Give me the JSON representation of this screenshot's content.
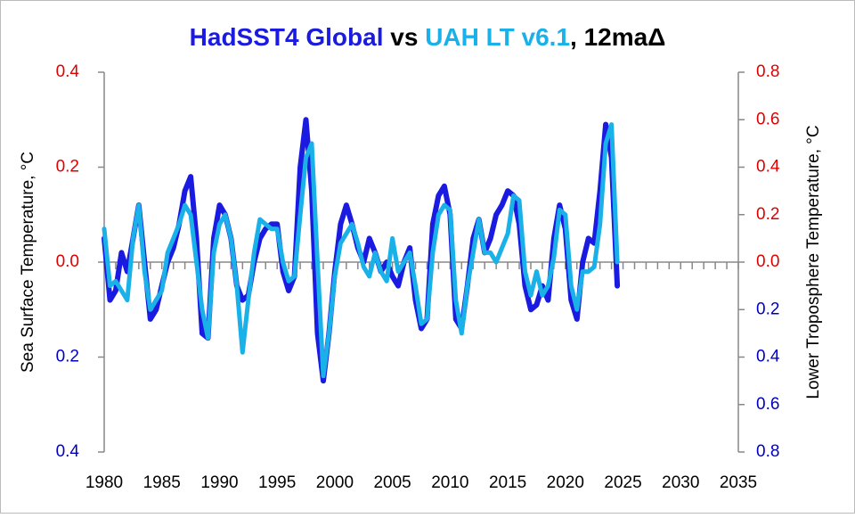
{
  "chart_data": {
    "type": "line",
    "title_separator": " vs ",
    "title_suffix": ", 12maΔ",
    "ylabel": "Sea Surface Temperature, °C",
    "y2label": "Lower Troposphere Temperature, °C",
    "x": [
      1980,
      1980.5,
      1981,
      1981.5,
      1982,
      1982.5,
      1983,
      1983.5,
      1984,
      1984.5,
      1985,
      1985.5,
      1986,
      1986.5,
      1987,
      1987.5,
      1988,
      1988.5,
      1989,
      1989.5,
      1990,
      1990.5,
      1991,
      1991.5,
      1992,
      1992.5,
      1993,
      1993.5,
      1994,
      1994.5,
      1995,
      1995.5,
      1996,
      1996.5,
      1997,
      1997.5,
      1998,
      1998.5,
      1999,
      1999.5,
      2000,
      2000.5,
      2001,
      2001.5,
      2002,
      2002.5,
      2003,
      2003.5,
      2004,
      2004.5,
      2005,
      2005.5,
      2006,
      2006.5,
      2007,
      2007.5,
      2008,
      2008.5,
      2009,
      2009.5,
      2010,
      2010.5,
      2011,
      2011.5,
      2012,
      2012.5,
      2013,
      2013.5,
      2014,
      2014.5,
      2015,
      2015.5,
      2016,
      2016.5,
      2017,
      2017.5,
      2018,
      2018.5,
      2019,
      2019.5,
      2020,
      2020.5,
      2021,
      2021.5,
      2022,
      2022.5,
      2023,
      2023.5,
      2024,
      2024.5
    ],
    "series": [
      {
        "name": "HadSST4 Global",
        "color": "#1a1ae0",
        "width": 6,
        "values": [
          0.05,
          -0.08,
          -0.06,
          0.02,
          -0.02,
          0.05,
          0.12,
          0.0,
          -0.12,
          -0.1,
          -0.05,
          0.0,
          0.03,
          0.08,
          0.15,
          0.18,
          0.05,
          -0.15,
          -0.16,
          0.05,
          0.12,
          0.1,
          0.05,
          -0.05,
          -0.08,
          -0.07,
          0.0,
          0.05,
          0.07,
          0.08,
          0.08,
          -0.02,
          -0.06,
          -0.03,
          0.2,
          0.3,
          0.15,
          -0.15,
          -0.25,
          -0.15,
          -0.02,
          0.08,
          0.12,
          0.08,
          0.03,
          0.0,
          0.05,
          0.02,
          -0.02,
          0.0,
          -0.03,
          -0.05,
          0.0,
          0.03,
          -0.08,
          -0.14,
          -0.12,
          0.08,
          0.14,
          0.16,
          0.1,
          -0.12,
          -0.14,
          -0.05,
          0.05,
          0.09,
          0.02,
          0.05,
          0.1,
          0.12,
          0.15,
          0.14,
          0.08,
          -0.05,
          -0.1,
          -0.09,
          -0.05,
          -0.08,
          0.05,
          0.12,
          0.07,
          -0.08,
          -0.12,
          0.0,
          0.05,
          0.04,
          0.15,
          0.29,
          0.22,
          -0.05
        ]
      },
      {
        "name": "UAH LT v6.1",
        "color": "#1ab0e8",
        "width": 5,
        "axis": "y2",
        "values": [
          0.14,
          -0.1,
          -0.08,
          -0.12,
          -0.16,
          0.1,
          0.24,
          -0.04,
          -0.2,
          -0.16,
          -0.12,
          0.04,
          0.1,
          0.16,
          0.24,
          0.2,
          0.0,
          -0.2,
          -0.32,
          0.04,
          0.16,
          0.2,
          0.1,
          -0.1,
          -0.38,
          -0.16,
          0.04,
          0.18,
          0.16,
          0.14,
          0.14,
          0.0,
          -0.08,
          -0.06,
          0.2,
          0.44,
          0.5,
          0.0,
          -0.48,
          -0.3,
          -0.06,
          0.08,
          0.12,
          0.16,
          0.08,
          -0.02,
          -0.06,
          0.04,
          -0.04,
          -0.08,
          0.1,
          -0.04,
          0.0,
          0.04,
          -0.1,
          -0.26,
          -0.24,
          0.04,
          0.2,
          0.24,
          0.22,
          -0.16,
          -0.3,
          -0.1,
          0.04,
          0.18,
          0.04,
          0.04,
          0.0,
          0.06,
          0.12,
          0.28,
          0.26,
          -0.04,
          -0.14,
          -0.04,
          -0.14,
          -0.1,
          0.02,
          0.22,
          0.2,
          -0.1,
          -0.2,
          -0.04,
          -0.04,
          -0.02,
          0.16,
          0.5,
          0.58,
          0.0
        ]
      }
    ],
    "xlim": [
      1980,
      2035
    ],
    "xticks": [
      1980,
      1985,
      1990,
      1995,
      2000,
      2005,
      2010,
      2015,
      2020,
      2025,
      2030,
      2035
    ],
    "ylim": [
      -0.4,
      0.4
    ],
    "yticks": [
      {
        "value": -0.4,
        "label": "0.4"
      },
      {
        "value": -0.2,
        "label": "0.2"
      },
      {
        "value": 0,
        "label": "0.0"
      },
      0.2,
      0.4
    ],
    "y2lim": [
      -0.8,
      0.8
    ],
    "y2ticks": [
      {
        "value": -0.8,
        "label": "0.8"
      },
      {
        "value": -0.6,
        "label": "0.6"
      },
      {
        "value": -0.4,
        "label": "0.4"
      },
      {
        "value": -0.2,
        "label": "0.2"
      },
      {
        "value": 0,
        "label": "0.0"
      },
      0.2,
      0.4,
      0.6,
      0.8
    ],
    "positive_tick_color": "#e00000",
    "negative_tick_color": "#0000c0"
  }
}
